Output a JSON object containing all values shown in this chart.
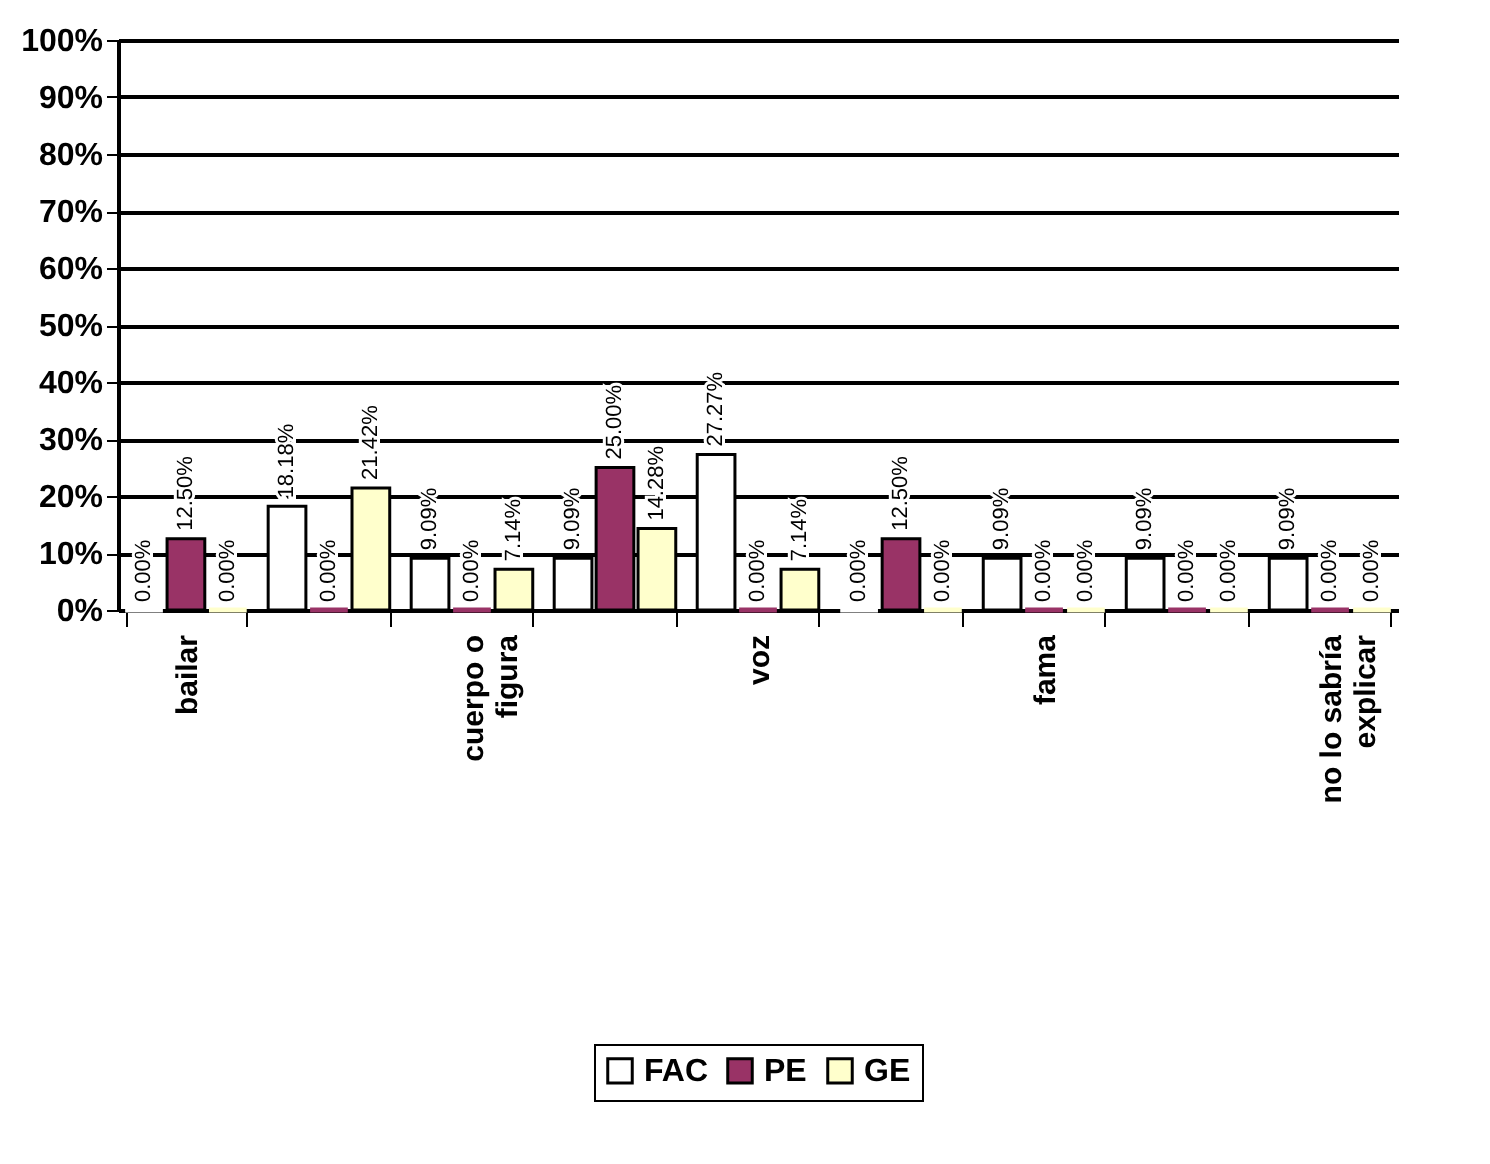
{
  "chart_data": {
    "type": "bar",
    "categories": [
      "bailar",
      null,
      "cuerpo o figura",
      null,
      "voz",
      null,
      "fama",
      null,
      "no lo sabría explicar"
    ],
    "series": [
      {
        "name": "FAC",
        "color": "#ffffff",
        "values": [
          0,
          18.18,
          9.09,
          9.09,
          27.27,
          0,
          9.09,
          9.09,
          9.09
        ],
        "value_labels": [
          "0.00%",
          "18.18%",
          "9.09%",
          "9.09%",
          "27.27%",
          "0.00%",
          "9.09%",
          "9.09%",
          "9.09%"
        ]
      },
      {
        "name": "PE",
        "color": "#993366",
        "values": [
          12.5,
          0,
          0,
          25,
          0,
          12.5,
          0,
          0,
          0
        ],
        "value_labels": [
          "12.50%",
          "0.00%",
          "0.00%",
          "25.00%",
          "0.00%",
          "12.50%",
          "0.00%",
          "0.00%",
          "0.00%"
        ]
      },
      {
        "name": "GE",
        "color": "#ffffcc",
        "values": [
          0,
          21.42,
          7.14,
          14.28,
          7.14,
          0,
          0,
          0,
          0
        ],
        "value_labels": [
          "0.00%",
          "21.42%",
          "7.14%",
          "14.28%",
          "7.14%",
          "0.00%",
          "0.00%",
          "0.00%",
          "0.00%"
        ]
      }
    ],
    "ylim": [
      0,
      100
    ],
    "yticks": [
      {
        "value": 0,
        "label": "0%"
      },
      {
        "value": 10,
        "label": "10%"
      },
      {
        "value": 20,
        "label": "20%"
      },
      {
        "value": 30,
        "label": "30%"
      },
      {
        "value": 40,
        "label": "40%"
      },
      {
        "value": 50,
        "label": "50%"
      },
      {
        "value": 60,
        "label": "60%"
      },
      {
        "value": 70,
        "label": "70%"
      },
      {
        "value": 80,
        "label": "80%"
      },
      {
        "value": 90,
        "label": "90%"
      },
      {
        "value": 100,
        "label": "100%"
      }
    ],
    "grid": "y",
    "legend": "bottom"
  }
}
